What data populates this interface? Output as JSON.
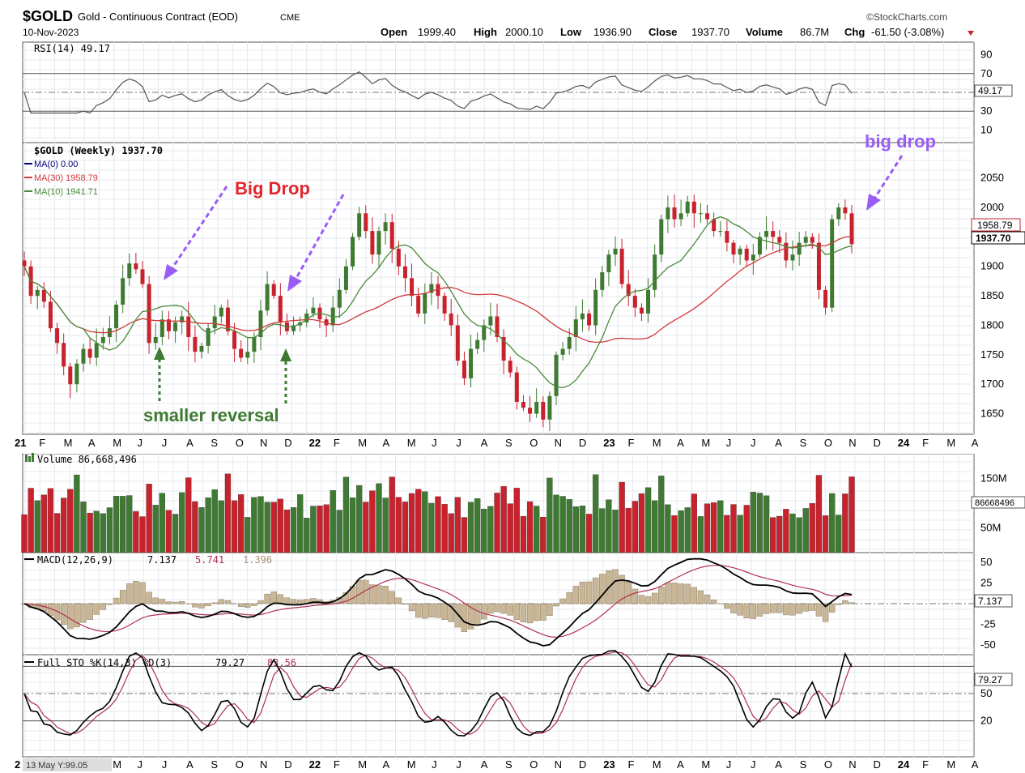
{
  "header": {
    "symbol": "$GOLD",
    "name": "Gold - Continuous Contract (EOD)",
    "exchange": "CME",
    "date": "10-Nov-2023",
    "watermark": "©StockCharts.com",
    "open_label": "Open",
    "open": "1999.40",
    "high_label": "High",
    "high": "2000.10",
    "low_label": "Low",
    "low": "1936.90",
    "close_label": "Close",
    "close": "1937.70",
    "volume_label": "Volume",
    "volume": "86.7M",
    "chg_label": "Chg",
    "chg": "-61.50 (-3.08%)"
  },
  "rsi": {
    "legend": "RSI(14) 49.17",
    "value_tag": "49.17",
    "ticks": [
      "90",
      "70",
      "50",
      "30",
      "10"
    ]
  },
  "price": {
    "legend": "$GOLD (Weekly) 1937.70",
    "ma0": "MA(0) 0.00",
    "ma30": "MA(30) 1958.79",
    "ma10": "MA(10) 1941.71",
    "ma30_tag": "1958.79",
    "close_tag": "1937.70",
    "ticks": [
      "2050",
      "2000",
      "1950",
      "1900",
      "1850",
      "1800",
      "1750",
      "1700",
      "1650"
    ]
  },
  "annotations": {
    "big_drop_1": "Big Drop",
    "big_drop_2": "big drop",
    "smaller_reversal": "smaller reversal"
  },
  "x_axis": {
    "labels": [
      "21",
      "F",
      "M",
      "A",
      "M",
      "J",
      "J",
      "A",
      "S",
      "O",
      "N",
      "D",
      "22",
      "F",
      "M",
      "A",
      "M",
      "J",
      "J",
      "A",
      "S",
      "O",
      "N",
      "D",
      "23",
      "F",
      "M",
      "A",
      "M",
      "J",
      "J",
      "A",
      "S",
      "O",
      "N",
      "D",
      "24",
      "F",
      "M",
      "A"
    ],
    "bottom_labels": [
      "2",
      "M",
      "J",
      "J",
      "A",
      "S",
      "O",
      "N",
      "D",
      "22",
      "F",
      "M",
      "A",
      "M",
      "J",
      "J",
      "A",
      "S",
      "O",
      "N",
      "D",
      "23",
      "F",
      "M",
      "A",
      "M",
      "J",
      "J",
      "A",
      "S",
      "O",
      "N",
      "D",
      "24",
      "F",
      "M",
      "A"
    ],
    "bottom_info": "13 May Y:99.05"
  },
  "volume": {
    "legend": "Volume 86,668,496",
    "value_tag": "86668496",
    "ticks": [
      "150M",
      "100M",
      "50M"
    ]
  },
  "macd": {
    "legend_label": "MACD(12,26,9)",
    "macd_value": "7.137",
    "signal_value": "5.741",
    "hist_value": "1.396",
    "value_tag": "7.137",
    "ticks": [
      "50",
      "25",
      "-25",
      "-50"
    ]
  },
  "sto": {
    "legend_label": "Full STO %K(14,3) %D(3)",
    "k_value": "79.27",
    "d_value": "83.56",
    "value_tag": "79.27",
    "ticks": [
      "50",
      "20"
    ]
  },
  "colors": {
    "up": "#3f7a32",
    "down": "#c8222d",
    "ma30": "#d03a3a",
    "ma10": "#4a8a3a",
    "annotation_purple": "#9b5cf5",
    "annotation_red": "#e3262d",
    "annotation_green": "#3f7a32"
  },
  "chart_data": {
    "type": "candlestick",
    "timeframe": "weekly",
    "x_start": "2021-01",
    "x_end": "2024-04",
    "price_ylim": [
      1615,
      2110
    ],
    "price_series": [
      {
        "name": "$GOLD close",
        "approx_weekly_close": [
          1900,
          1850,
          1860,
          1840,
          1795,
          1770,
          1730,
          1700,
          1735,
          1760,
          1745,
          1770,
          1780,
          1795,
          1835,
          1880,
          1905,
          1895,
          1870,
          1770,
          1780,
          1810,
          1790,
          1805,
          1815,
          1780,
          1755,
          1765,
          1795,
          1815,
          1830,
          1790,
          1760,
          1745,
          1755,
          1780,
          1825,
          1870,
          1850,
          1805,
          1790,
          1800,
          1805,
          1820,
          1830,
          1810,
          1800,
          1830,
          1860,
          1900,
          1950,
          1990,
          1960,
          1920,
          1960,
          1975,
          1930,
          1900,
          1880,
          1850,
          1820,
          1855,
          1870,
          1850,
          1820,
          1800,
          1740,
          1710,
          1760,
          1775,
          1800,
          1815,
          1780,
          1740,
          1720,
          1670,
          1660,
          1650,
          1670,
          1640,
          1680,
          1750,
          1760,
          1780,
          1810,
          1820,
          1800,
          1860,
          1890,
          1920,
          1930,
          1870,
          1850,
          1830,
          1820,
          1860,
          1920,
          1980,
          2000,
          1980,
          1990,
          2010,
          1990,
          1990,
          1980,
          1960,
          1960,
          1940,
          1920,
          1930,
          1910,
          1920,
          1950,
          1960,
          1950,
          1940,
          1910,
          1920,
          1940,
          1950,
          1940,
          1860,
          1830,
          1980,
          2000,
          1990,
          1937.7
        ]
      },
      {
        "name": "MA(30)",
        "value": 1958.79
      },
      {
        "name": "MA(10)",
        "value": 1941.71
      }
    ],
    "rsi": {
      "ylim": [
        0,
        100
      ],
      "last": 49.17,
      "levels": [
        70,
        30
      ]
    },
    "volume_last": 86668496,
    "macd": {
      "macd": 7.137,
      "signal": 5.741,
      "histogram": 1.396
    },
    "full_sto": {
      "k": 79.27,
      "d": 83.56,
      "levels": [
        80,
        20
      ]
    }
  }
}
